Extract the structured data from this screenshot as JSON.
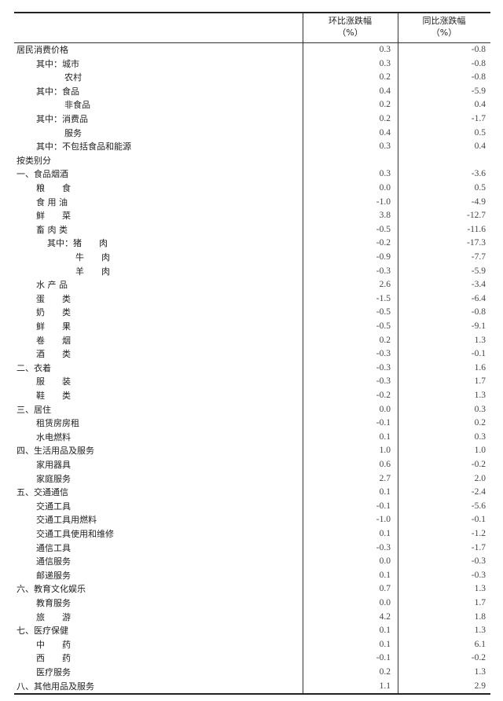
{
  "header": {
    "col1_line1": "环比涨跌幅",
    "col1_line2": "（%）",
    "col2_line1": "同比涨跌幅",
    "col2_line2": "（%）"
  },
  "rows": [
    {
      "label": "居民消费价格",
      "level": 0,
      "mom": "0.3",
      "yoy": "-0.8"
    },
    {
      "label": "其中：城市",
      "level": 1,
      "mom": "0.3",
      "yoy": "-0.8"
    },
    {
      "label": "农村",
      "level": 2,
      "mom": "0.2",
      "yoy": "-0.8"
    },
    {
      "label": "其中：食品",
      "level": 1,
      "mom": "0.4",
      "yoy": "-5.9"
    },
    {
      "label": "非食品",
      "level": 2,
      "mom": "0.2",
      "yoy": "0.4"
    },
    {
      "label": "其中：消费品",
      "level": 1,
      "mom": "0.2",
      "yoy": "-1.7"
    },
    {
      "label": "服务",
      "level": 2,
      "mom": "0.4",
      "yoy": "0.5"
    },
    {
      "label": "其中：不包括食品和能源",
      "level": 1,
      "mom": "0.3",
      "yoy": "0.4"
    },
    {
      "label": "按类别分",
      "level": 0,
      "mom": "",
      "yoy": ""
    },
    {
      "label": "一、食品烟酒",
      "level": 0,
      "mom": "0.3",
      "yoy": "-3.6"
    },
    {
      "label": "粮　　食",
      "level": 1,
      "mom": "0.0",
      "yoy": "0.5"
    },
    {
      "label": "食 用 油",
      "level": 1,
      "mom": "-1.0",
      "yoy": "-4.9"
    },
    {
      "label": "鲜　　菜",
      "level": 1,
      "mom": "3.8",
      "yoy": "-12.7"
    },
    {
      "label": "畜 肉 类",
      "level": 1,
      "mom": "-0.5",
      "yoy": "-11.6"
    },
    {
      "label": "其中：猪　　肉",
      "level": 3,
      "mom": "-0.2",
      "yoy": "-17.3"
    },
    {
      "label": "牛　　肉",
      "level": 4,
      "mom": "-0.9",
      "yoy": "-7.7"
    },
    {
      "label": "羊　　肉",
      "level": 4,
      "mom": "-0.3",
      "yoy": "-5.9"
    },
    {
      "label": "水 产 品",
      "level": 1,
      "mom": "2.6",
      "yoy": "-3.4"
    },
    {
      "label": "蛋　　类",
      "level": 1,
      "mom": "-1.5",
      "yoy": "-6.4"
    },
    {
      "label": "奶　　类",
      "level": 1,
      "mom": "-0.5",
      "yoy": "-0.8"
    },
    {
      "label": "鲜　　果",
      "level": 1,
      "mom": "-0.5",
      "yoy": "-9.1"
    },
    {
      "label": "卷　　烟",
      "level": 1,
      "mom": "0.2",
      "yoy": "1.3"
    },
    {
      "label": "酒　　类",
      "level": 1,
      "mom": "-0.3",
      "yoy": "-0.1"
    },
    {
      "label": "二、衣着",
      "level": 0,
      "mom": "-0.3",
      "yoy": "1.6"
    },
    {
      "label": "服　　装",
      "level": 1,
      "mom": "-0.3",
      "yoy": "1.7"
    },
    {
      "label": "鞋　　类",
      "level": 1,
      "mom": "-0.2",
      "yoy": "1.3"
    },
    {
      "label": "三、居住",
      "level": 0,
      "mom": "0.0",
      "yoy": "0.3"
    },
    {
      "label": "租赁房房租",
      "level": 1,
      "mom": "-0.1",
      "yoy": "0.2"
    },
    {
      "label": "水电燃料",
      "level": 1,
      "mom": "0.1",
      "yoy": "0.3"
    },
    {
      "label": "四、生活用品及服务",
      "level": 0,
      "mom": "1.0",
      "yoy": "1.0"
    },
    {
      "label": "家用器具",
      "level": 1,
      "mom": "0.6",
      "yoy": "-0.2"
    },
    {
      "label": "家庭服务",
      "level": 1,
      "mom": "2.7",
      "yoy": "2.0"
    },
    {
      "label": "五、交通通信",
      "level": 0,
      "mom": "0.1",
      "yoy": "-2.4"
    },
    {
      "label": "交通工具",
      "level": 1,
      "mom": "-0.1",
      "yoy": "-5.6"
    },
    {
      "label": "交通工具用燃料",
      "level": 1,
      "mom": "-1.0",
      "yoy": "-0.1"
    },
    {
      "label": "交通工具使用和维修",
      "level": 1,
      "mom": "0.1",
      "yoy": "-1.2"
    },
    {
      "label": "通信工具",
      "level": 1,
      "mom": "-0.3",
      "yoy": "-1.7"
    },
    {
      "label": "通信服务",
      "level": 1,
      "mom": "0.0",
      "yoy": "-0.3"
    },
    {
      "label": "邮递服务",
      "level": 1,
      "mom": "0.1",
      "yoy": "-0.3"
    },
    {
      "label": "六、教育文化娱乐",
      "level": 0,
      "mom": "0.7",
      "yoy": "1.3"
    },
    {
      "label": "教育服务",
      "level": 1,
      "mom": "0.0",
      "yoy": "1.7"
    },
    {
      "label": "旅　　游",
      "level": 1,
      "mom": "4.2",
      "yoy": "1.8"
    },
    {
      "label": "七、医疗保健",
      "level": 0,
      "mom": "0.1",
      "yoy": "1.3"
    },
    {
      "label": "中　　药",
      "level": 1,
      "mom": "0.1",
      "yoy": "6.1"
    },
    {
      "label": "西　　药",
      "level": 1,
      "mom": "-0.1",
      "yoy": "-0.2"
    },
    {
      "label": "医疗服务",
      "level": 1,
      "mom": "0.2",
      "yoy": "1.3"
    },
    {
      "label": "八、其他用品及服务",
      "level": 0,
      "mom": "1.1",
      "yoy": "2.9"
    }
  ]
}
